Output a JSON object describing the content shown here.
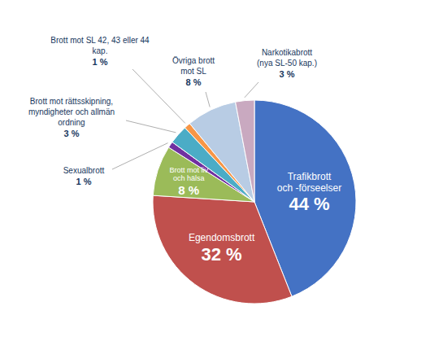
{
  "chart_data": {
    "type": "pie",
    "categories": [
      "Trafikbrott\noch -förseelser",
      "Egendomsbrott",
      "Brott mot liv\noch hälsa",
      "Sexualbrott",
      "Brott mot rättsskipning,\nmyndigheter och allmän\nordning",
      "Brott mot SL 42, 43 eller 44\nkap.",
      "Övriga brott\nmot SL",
      "Narkotikabrott\n(nya SL-50 kap.)"
    ],
    "values": [
      44,
      32,
      8,
      1,
      3,
      1,
      8,
      3
    ],
    "value_labels": [
      "44 %",
      "32 %",
      "8 %",
      "1 %",
      "3 %",
      "1 %",
      "8 %",
      "3 %"
    ],
    "colors": [
      "#4472C4",
      "#C0504D",
      "#9BBB59",
      "#7030A0",
      "#4BACC6",
      "#F79646",
      "#B8CCE4",
      "#C9A9C0"
    ],
    "data_labels": true
  }
}
